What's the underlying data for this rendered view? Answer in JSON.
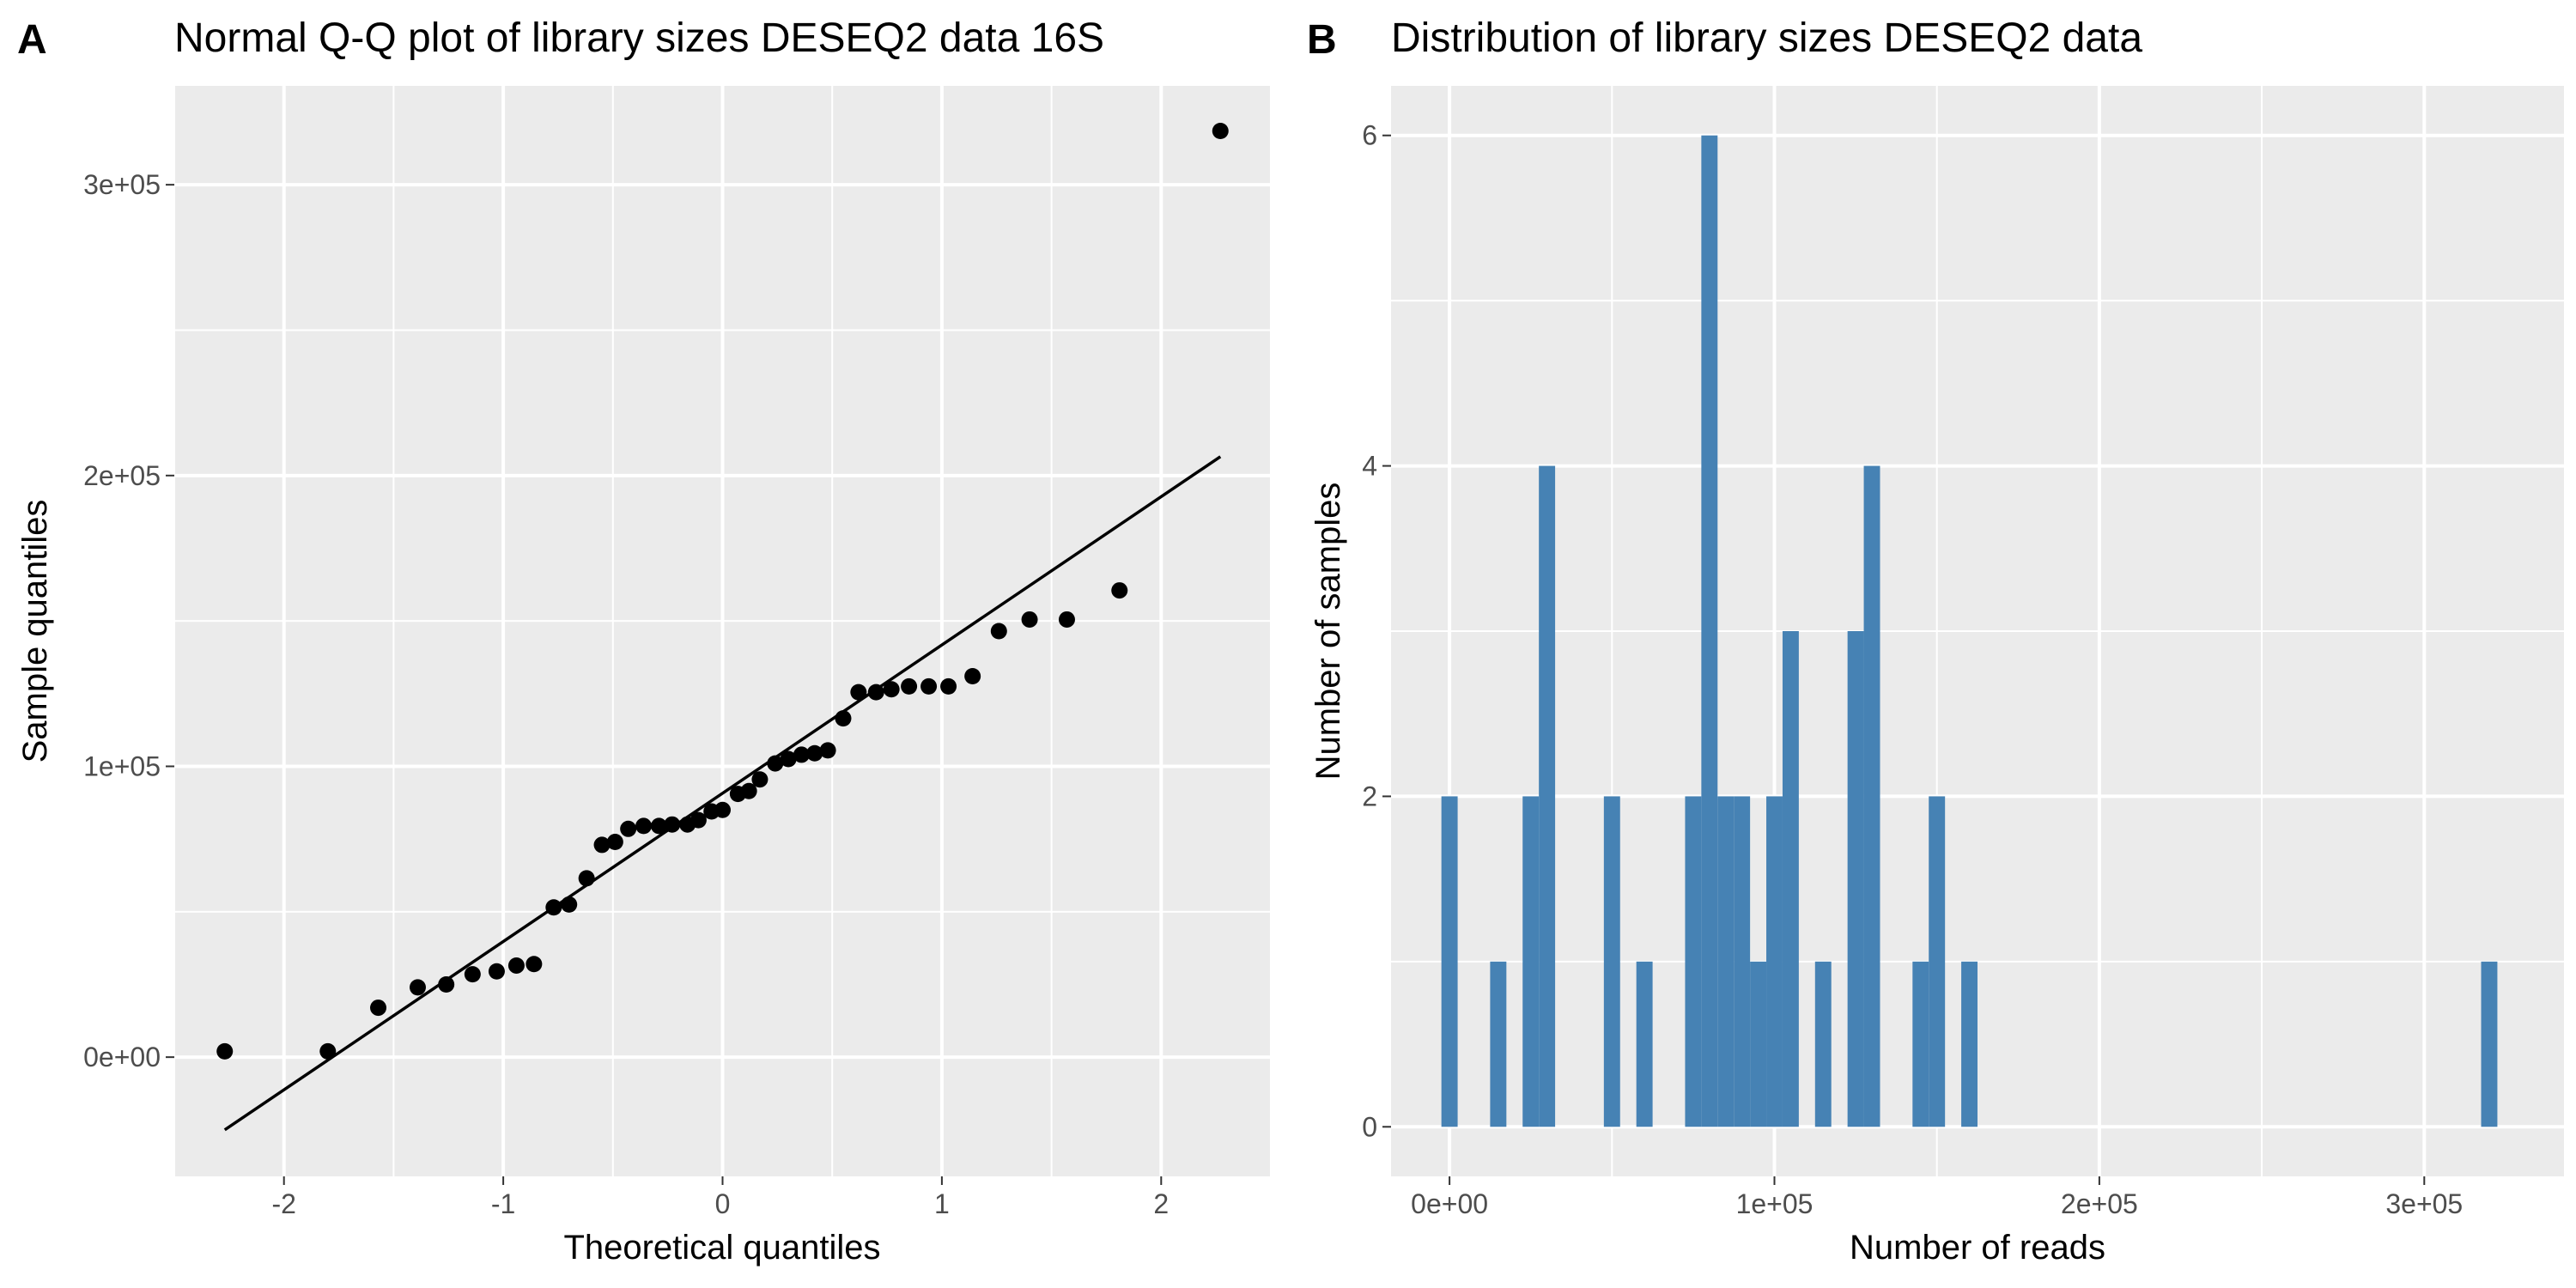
{
  "chart_data": [
    {
      "panel": "A",
      "type": "scatter",
      "title": "Normal Q-Q plot of library sizes DESEQ2 data 16S",
      "xlabel": "Theoretical quantiles",
      "ylabel": "Sample quantiles",
      "xlim": [
        -2.5,
        2.5
      ],
      "ylim": [
        -41000,
        334000
      ],
      "x_ticks": [
        -2,
        -1,
        0,
        1,
        2
      ],
      "x_tick_labels": [
        "-2",
        "-1",
        "0",
        "1",
        "2"
      ],
      "y_ticks": [
        0,
        100000,
        200000,
        300000
      ],
      "y_tick_labels": [
        "0e+00",
        "1e+05",
        "2e+05",
        "3e+05"
      ],
      "grid": true,
      "point_color": "#000000",
      "points": [
        {
          "x": -2.27,
          "y": 2000
        },
        {
          "x": -1.8,
          "y": 2000
        },
        {
          "x": -1.57,
          "y": 17000
        },
        {
          "x": -1.39,
          "y": 24000
        },
        {
          "x": -1.26,
          "y": 25000
        },
        {
          "x": -1.14,
          "y": 28500
        },
        {
          "x": -1.03,
          "y": 29500
        },
        {
          "x": -0.94,
          "y": 31500
        },
        {
          "x": -0.86,
          "y": 32000
        },
        {
          "x": -0.77,
          "y": 51500
        },
        {
          "x": -0.7,
          "y": 52500
        },
        {
          "x": -0.62,
          "y": 61500
        },
        {
          "x": -0.55,
          "y": 73000
        },
        {
          "x": -0.49,
          "y": 74000
        },
        {
          "x": -0.43,
          "y": 78500
        },
        {
          "x": -0.36,
          "y": 79500
        },
        {
          "x": -0.29,
          "y": 79500
        },
        {
          "x": -0.23,
          "y": 80000
        },
        {
          "x": -0.16,
          "y": 80000
        },
        {
          "x": -0.11,
          "y": 81500
        },
        {
          "x": -0.05,
          "y": 84500
        },
        {
          "x": 0.0,
          "y": 85000
        },
        {
          "x": 0.07,
          "y": 90500
        },
        {
          "x": 0.12,
          "y": 91500
        },
        {
          "x": 0.17,
          "y": 95500
        },
        {
          "x": 0.24,
          "y": 101000
        },
        {
          "x": 0.3,
          "y": 102500
        },
        {
          "x": 0.36,
          "y": 104000
        },
        {
          "x": 0.42,
          "y": 104500
        },
        {
          "x": 0.48,
          "y": 105500
        },
        {
          "x": 0.55,
          "y": 116500
        },
        {
          "x": 0.62,
          "y": 125500
        },
        {
          "x": 0.7,
          "y": 125500
        },
        {
          "x": 0.77,
          "y": 126500
        },
        {
          "x": 0.85,
          "y": 127500
        },
        {
          "x": 0.94,
          "y": 127500
        },
        {
          "x": 1.03,
          "y": 127500
        },
        {
          "x": 1.14,
          "y": 131000
        },
        {
          "x": 1.26,
          "y": 146500
        },
        {
          "x": 1.4,
          "y": 150500
        },
        {
          "x": 1.57,
          "y": 150500
        },
        {
          "x": 1.81,
          "y": 160500
        },
        {
          "x": 2.27,
          "y": 318500
        }
      ],
      "reference_line": {
        "x": [
          -2.27,
          2.27
        ],
        "y": [
          -25000,
          206500
        ],
        "color": "#000000"
      }
    },
    {
      "panel": "B",
      "type": "bar",
      "title": "Distribution of library sizes DESEQ2 data",
      "xlabel": "Number of reads",
      "ylabel": "Number of samples",
      "xlim": [
        -18000,
        343000
      ],
      "ylim": [
        -0.3,
        6.3
      ],
      "x_ticks": [
        0,
        100000,
        200000,
        300000
      ],
      "x_tick_labels": [
        "0e+00",
        "1e+05",
        "2e+05",
        "3e+05"
      ],
      "y_ticks": [
        0,
        2,
        4,
        6
      ],
      "y_tick_labels": [
        "0",
        "2",
        "4",
        "6"
      ],
      "grid": true,
      "bar_color": "#4682b4",
      "bin_width": 5000,
      "bins": [
        {
          "start": -2500,
          "count": 2
        },
        {
          "start": 12500,
          "count": 1
        },
        {
          "start": 22500,
          "count": 2
        },
        {
          "start": 27500,
          "count": 4
        },
        {
          "start": 47500,
          "count": 2
        },
        {
          "start": 57500,
          "count": 1
        },
        {
          "start": 72500,
          "count": 2
        },
        {
          "start": 77500,
          "count": 6
        },
        {
          "start": 82500,
          "count": 2
        },
        {
          "start": 87500,
          "count": 2
        },
        {
          "start": 92500,
          "count": 1
        },
        {
          "start": 97500,
          "count": 2
        },
        {
          "start": 102500,
          "count": 3
        },
        {
          "start": 112500,
          "count": 1
        },
        {
          "start": 122500,
          "count": 3
        },
        {
          "start": 127500,
          "count": 4
        },
        {
          "start": 142500,
          "count": 1
        },
        {
          "start": 147500,
          "count": 2
        },
        {
          "start": 157500,
          "count": 1
        },
        {
          "start": 317500,
          "count": 1
        }
      ]
    }
  ]
}
